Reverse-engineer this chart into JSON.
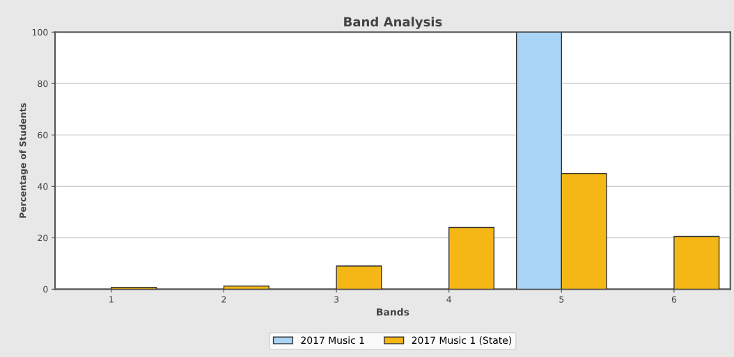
{
  "chart_data": {
    "type": "bar",
    "title": "Band Analysis",
    "xlabel": "Bands",
    "ylabel": "Percentage of Students",
    "categories": [
      "1",
      "2",
      "3",
      "4",
      "5",
      "6"
    ],
    "series": [
      {
        "name": "2017 Music 1",
        "color": "#a9d4f5",
        "values": [
          null,
          null,
          null,
          null,
          100,
          null
        ]
      },
      {
        "name": "2017 Music 1 (State)",
        "color": "#f5b716",
        "values": [
          0.7,
          1.2,
          9,
          24,
          45,
          20.5
        ]
      }
    ],
    "ylim": [
      0,
      100
    ],
    "yticks": [
      0,
      20,
      40,
      60,
      80,
      100
    ],
    "grid": "y",
    "legend": "bottom"
  }
}
